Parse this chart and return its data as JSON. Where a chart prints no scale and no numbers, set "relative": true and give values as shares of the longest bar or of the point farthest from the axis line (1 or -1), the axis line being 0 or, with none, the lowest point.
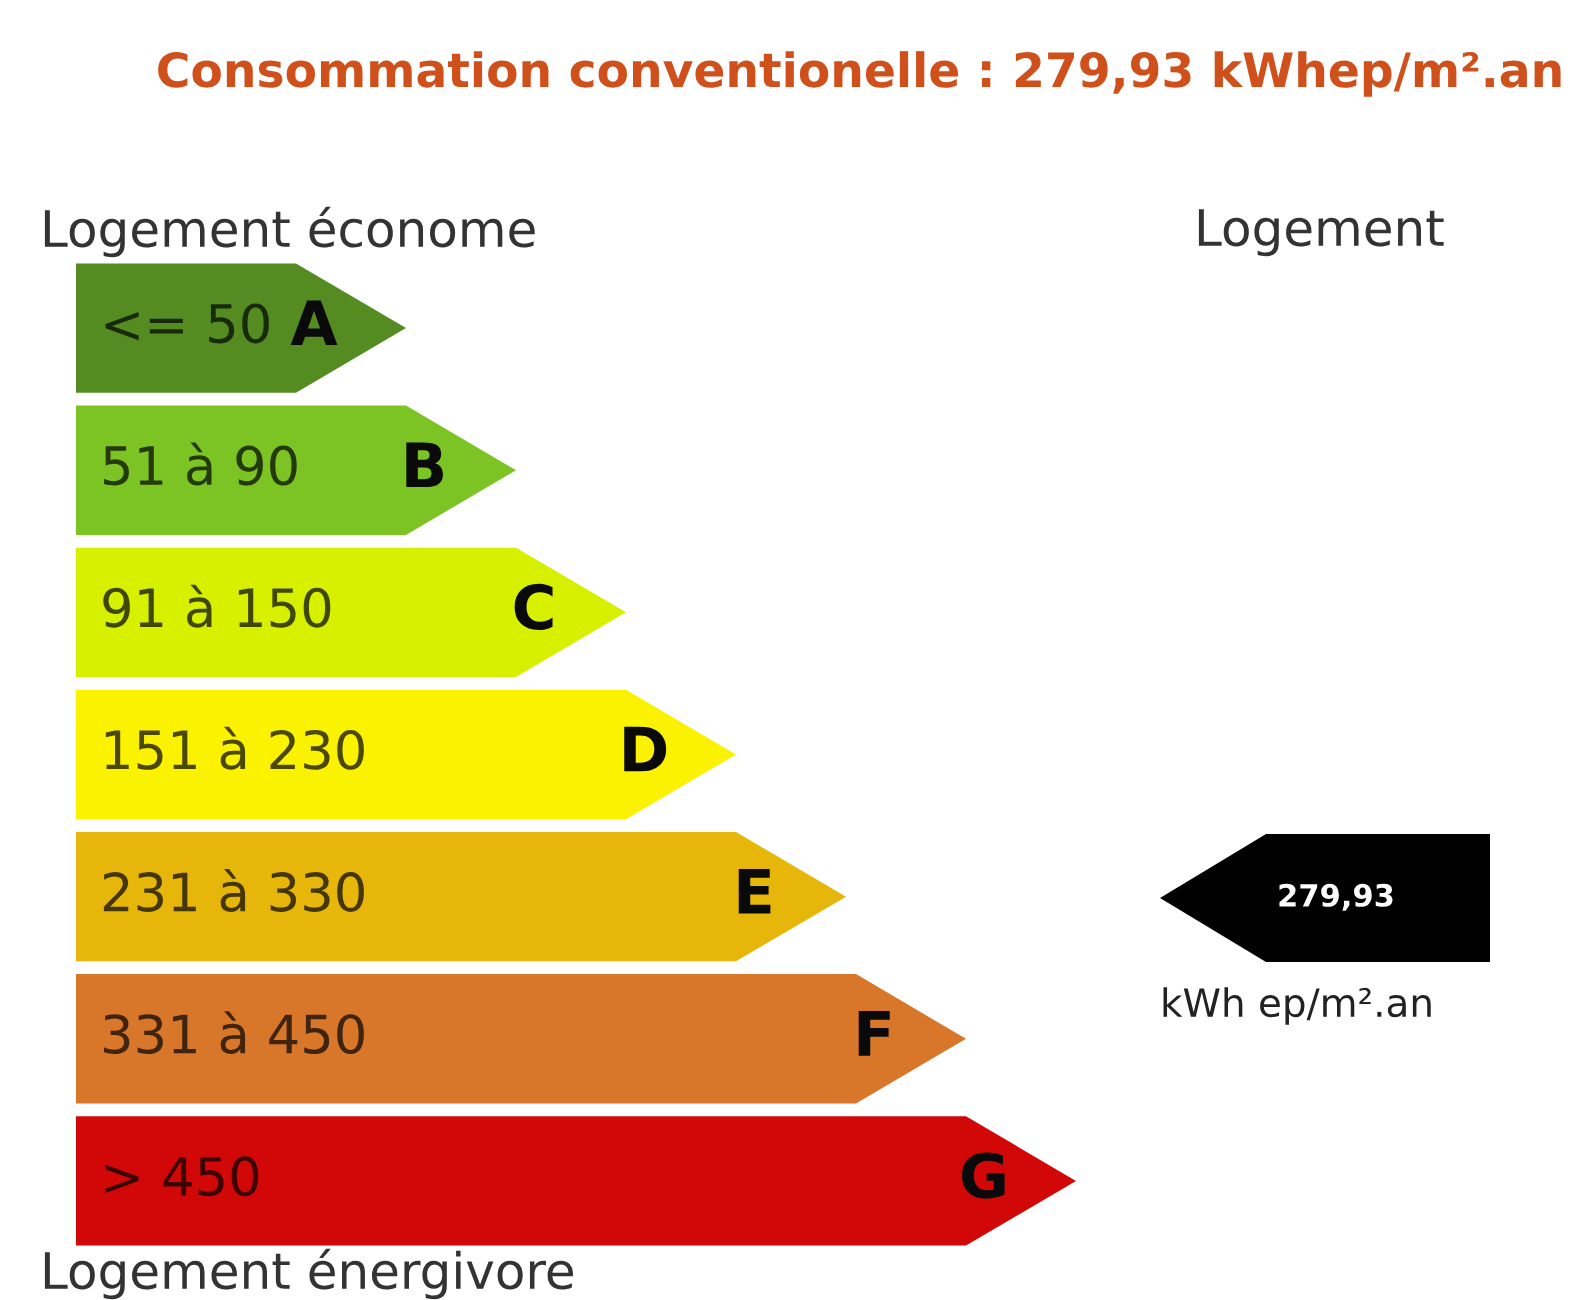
{
  "chart_data": {
    "type": "bar",
    "orientation": "horizontal",
    "relative": true,
    "title": "Consommation conventionelle : 279,93 kWhep/m².an",
    "categories": [
      "A",
      "B",
      "C",
      "D",
      "E",
      "F",
      "G"
    ],
    "values": [
      0.33,
      0.44,
      0.55,
      0.66,
      0.77,
      0.89,
      1
    ],
    "colors": [
      "#558c22",
      "#7cc324",
      "#d6f000",
      "#faf200",
      "#e6b60a",
      "#d8772a",
      "#d20808"
    ],
    "annotations": [
      "Logement économe",
      "Logement",
      "<= 50",
      "51 à 90",
      "91 à 150",
      "151 à 230",
      "231 à 330",
      "331 à 450",
      "> 450",
      "279,93",
      "kWh ep/m².an",
      "Logement énergivore"
    ]
  }
}
